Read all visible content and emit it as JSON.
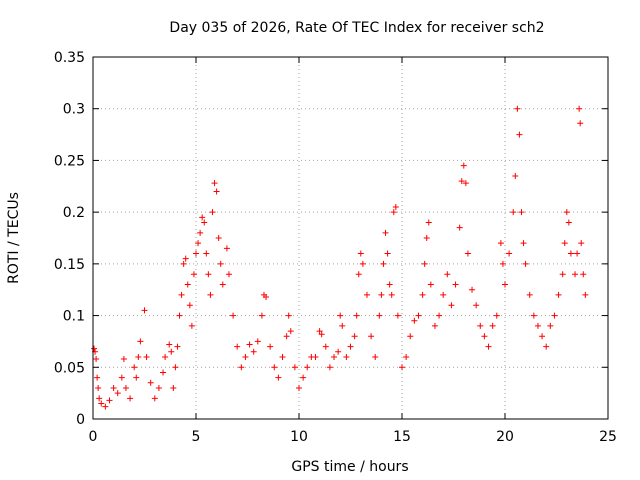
{
  "chart_data": {
    "type": "scatter",
    "title": "Day 035 of 2026, Rate Of TEC Index for receiver sch2",
    "xlabel": "GPS time / hours",
    "ylabel": "ROTI / TECUs",
    "xlim": [
      0,
      25
    ],
    "ylim": [
      0,
      0.35
    ],
    "xticks": [
      0,
      5,
      10,
      15,
      20,
      25
    ],
    "yticks": [
      0,
      0.05,
      0.1,
      0.15,
      0.2,
      0.25,
      0.3,
      0.35
    ],
    "xtick_labels": [
      "0",
      "5",
      "10",
      "15",
      "20",
      "25"
    ],
    "ytick_labels": [
      "0",
      "0.05",
      "0.1",
      "0.15",
      "0.2",
      "0.25",
      "0.3",
      "0.35"
    ],
    "grid": true,
    "marker": "+",
    "color": "#ff0000",
    "points": [
      [
        0.05,
        0.068
      ],
      [
        0.1,
        0.065
      ],
      [
        0.15,
        0.058
      ],
      [
        0.2,
        0.04
      ],
      [
        0.25,
        0.03
      ],
      [
        0.3,
        0.02
      ],
      [
        0.4,
        0.015
      ],
      [
        0.6,
        0.012
      ],
      [
        0.8,
        0.018
      ],
      [
        1.0,
        0.03
      ],
      [
        1.2,
        0.025
      ],
      [
        1.4,
        0.04
      ],
      [
        1.5,
        0.058
      ],
      [
        1.6,
        0.03
      ],
      [
        1.8,
        0.02
      ],
      [
        2.0,
        0.05
      ],
      [
        2.1,
        0.04
      ],
      [
        2.2,
        0.06
      ],
      [
        2.3,
        0.075
      ],
      [
        2.5,
        0.105
      ],
      [
        2.6,
        0.06
      ],
      [
        2.8,
        0.035
      ],
      [
        3.0,
        0.02
      ],
      [
        3.2,
        0.03
      ],
      [
        3.4,
        0.045
      ],
      [
        3.5,
        0.06
      ],
      [
        3.7,
        0.072
      ],
      [
        3.8,
        0.065
      ],
      [
        3.9,
        0.03
      ],
      [
        4.0,
        0.05
      ],
      [
        4.1,
        0.07
      ],
      [
        4.2,
        0.1
      ],
      [
        4.3,
        0.12
      ],
      [
        4.4,
        0.15
      ],
      [
        4.5,
        0.155
      ],
      [
        4.6,
        0.13
      ],
      [
        4.7,
        0.11
      ],
      [
        4.8,
        0.09
      ],
      [
        4.9,
        0.14
      ],
      [
        5.0,
        0.16
      ],
      [
        5.1,
        0.17
      ],
      [
        5.2,
        0.18
      ],
      [
        5.3,
        0.195
      ],
      [
        5.4,
        0.19
      ],
      [
        5.5,
        0.16
      ],
      [
        5.6,
        0.14
      ],
      [
        5.7,
        0.12
      ],
      [
        5.8,
        0.2
      ],
      [
        5.9,
        0.228
      ],
      [
        6.0,
        0.22
      ],
      [
        6.1,
        0.175
      ],
      [
        6.2,
        0.15
      ],
      [
        6.3,
        0.13
      ],
      [
        6.5,
        0.165
      ],
      [
        6.6,
        0.14
      ],
      [
        6.8,
        0.1
      ],
      [
        7.0,
        0.07
      ],
      [
        7.2,
        0.05
      ],
      [
        7.4,
        0.06
      ],
      [
        7.6,
        0.072
      ],
      [
        7.8,
        0.065
      ],
      [
        8.0,
        0.075
      ],
      [
        8.2,
        0.1
      ],
      [
        8.3,
        0.12
      ],
      [
        8.4,
        0.118
      ],
      [
        8.6,
        0.07
      ],
      [
        8.8,
        0.05
      ],
      [
        9.0,
        0.04
      ],
      [
        9.2,
        0.06
      ],
      [
        9.4,
        0.08
      ],
      [
        9.5,
        0.1
      ],
      [
        9.6,
        0.085
      ],
      [
        9.8,
        0.05
      ],
      [
        10.0,
        0.03
      ],
      [
        10.2,
        0.04
      ],
      [
        10.4,
        0.05
      ],
      [
        10.6,
        0.06
      ],
      [
        10.8,
        0.06
      ],
      [
        11.0,
        0.085
      ],
      [
        11.1,
        0.082
      ],
      [
        11.3,
        0.07
      ],
      [
        11.5,
        0.05
      ],
      [
        11.7,
        0.06
      ],
      [
        11.9,
        0.065
      ],
      [
        12.0,
        0.1
      ],
      [
        12.1,
        0.09
      ],
      [
        12.3,
        0.06
      ],
      [
        12.5,
        0.07
      ],
      [
        12.7,
        0.08
      ],
      [
        12.8,
        0.1
      ],
      [
        12.9,
        0.14
      ],
      [
        13.0,
        0.16
      ],
      [
        13.1,
        0.15
      ],
      [
        13.3,
        0.12
      ],
      [
        13.5,
        0.08
      ],
      [
        13.7,
        0.06
      ],
      [
        13.9,
        0.1
      ],
      [
        14.0,
        0.12
      ],
      [
        14.1,
        0.15
      ],
      [
        14.2,
        0.18
      ],
      [
        14.3,
        0.16
      ],
      [
        14.4,
        0.13
      ],
      [
        14.5,
        0.12
      ],
      [
        14.6,
        0.2
      ],
      [
        14.7,
        0.205
      ],
      [
        14.8,
        0.1
      ],
      [
        15.0,
        0.05
      ],
      [
        15.2,
        0.06
      ],
      [
        15.4,
        0.08
      ],
      [
        15.6,
        0.095
      ],
      [
        15.8,
        0.1
      ],
      [
        16.0,
        0.12
      ],
      [
        16.1,
        0.15
      ],
      [
        16.2,
        0.175
      ],
      [
        16.3,
        0.19
      ],
      [
        16.4,
        0.13
      ],
      [
        16.6,
        0.09
      ],
      [
        16.8,
        0.1
      ],
      [
        17.0,
        0.12
      ],
      [
        17.2,
        0.14
      ],
      [
        17.4,
        0.11
      ],
      [
        17.6,
        0.13
      ],
      [
        17.8,
        0.185
      ],
      [
        17.9,
        0.23
      ],
      [
        18.0,
        0.245
      ],
      [
        18.1,
        0.228
      ],
      [
        18.2,
        0.16
      ],
      [
        18.4,
        0.125
      ],
      [
        18.6,
        0.11
      ],
      [
        18.8,
        0.09
      ],
      [
        19.0,
        0.08
      ],
      [
        19.2,
        0.07
      ],
      [
        19.4,
        0.09
      ],
      [
        19.6,
        0.1
      ],
      [
        19.8,
        0.17
      ],
      [
        19.9,
        0.15
      ],
      [
        20.0,
        0.13
      ],
      [
        20.2,
        0.16
      ],
      [
        20.4,
        0.2
      ],
      [
        20.5,
        0.235
      ],
      [
        20.6,
        0.3
      ],
      [
        20.7,
        0.275
      ],
      [
        20.8,
        0.2
      ],
      [
        20.9,
        0.17
      ],
      [
        21.0,
        0.15
      ],
      [
        21.2,
        0.12
      ],
      [
        21.4,
        0.1
      ],
      [
        21.6,
        0.09
      ],
      [
        21.8,
        0.08
      ],
      [
        22.0,
        0.07
      ],
      [
        22.2,
        0.09
      ],
      [
        22.4,
        0.1
      ],
      [
        22.6,
        0.12
      ],
      [
        22.8,
        0.14
      ],
      [
        22.9,
        0.17
      ],
      [
        23.0,
        0.2
      ],
      [
        23.1,
        0.19
      ],
      [
        23.2,
        0.16
      ],
      [
        23.4,
        0.14
      ],
      [
        23.5,
        0.16
      ],
      [
        23.6,
        0.3
      ],
      [
        23.65,
        0.286
      ],
      [
        23.7,
        0.17
      ],
      [
        23.8,
        0.14
      ],
      [
        23.9,
        0.12
      ]
    ]
  }
}
